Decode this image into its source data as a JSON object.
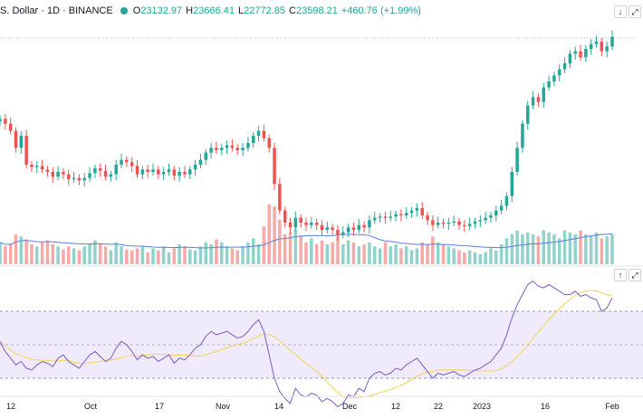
{
  "header": {
    "title": "S. Dollar · 1D · BINANCE",
    "ohlc": [
      {
        "label": "O",
        "value": "23132.97"
      },
      {
        "label": "H",
        "value": "23666.41"
      },
      {
        "label": "L",
        "value": "22772.85"
      },
      {
        "label": "C",
        "value": "23598.21"
      }
    ],
    "change": "+460.76 (+1.99%)"
  },
  "colors": {
    "up": "#26a69a",
    "down": "#ef5350",
    "volume_ma": "#5b7fe0",
    "rsi_line": "#7e57c2",
    "rsi_ma": "#f5d64f",
    "rsi_band": "#efeafc"
  },
  "time_axis": [
    "12",
    "Oct",
    "17",
    "Nov",
    "14",
    "Dec",
    "12",
    "22",
    "2023",
    "16",
    "Feb"
  ],
  "chart_data": [
    {
      "type": "line",
      "title": "",
      "subtitle": "",
      "note": "Candlestick price series (close values); y axis not labeled in the visible area",
      "series": [
        {
          "values": [
            94,
            90,
            84,
            70,
            80,
            56,
            54,
            55,
            52,
            50,
            46,
            50,
            48,
            44,
            45,
            43,
            45,
            49,
            53,
            51,
            46,
            48,
            56,
            60,
            58,
            55,
            48,
            52,
            50,
            52,
            48,
            50,
            52,
            47,
            50,
            48,
            52,
            56,
            60,
            66,
            70,
            68,
            70,
            72,
            70,
            68,
            70,
            74,
            80,
            84,
            78,
            70,
            40,
            18,
            8,
            4,
            12,
            8,
            6,
            8,
            6,
            2,
            4,
            2,
            -2,
            0,
            4,
            2,
            6,
            4,
            10,
            12,
            13,
            12,
            13,
            15,
            14,
            16,
            18,
            20,
            14,
            10,
            6,
            8,
            7,
            8,
            9,
            6,
            5,
            7,
            9,
            10,
            12,
            14,
            18,
            22,
            30,
            50,
            70,
            90,
            105,
            112,
            108,
            120,
            125,
            130,
            135,
            140,
            148,
            150,
            145,
            152,
            156,
            158,
            150,
            154,
            162
          ]
        }
      ]
    },
    {
      "type": "bar",
      "title": "",
      "note": "Volume pane with moving average; no printed values",
      "series": [
        {
          "values": [
            22,
            18,
            20,
            30,
            28,
            25,
            20,
            18,
            22,
            24,
            20,
            18,
            15,
            18,
            16,
            14,
            18,
            20,
            24,
            20,
            18,
            14,
            22,
            18,
            15,
            14,
            16,
            18,
            12,
            16,
            14,
            18,
            12,
            16,
            20,
            18,
            15,
            14,
            18,
            22,
            20,
            25,
            22,
            18,
            16,
            14,
            18,
            22,
            26,
            20,
            38,
            60,
            58,
            45,
            30,
            32,
            35,
            28,
            22,
            26,
            20,
            24,
            20,
            22,
            28,
            20,
            24,
            22,
            18,
            20,
            22,
            18,
            16,
            22,
            18,
            20,
            16,
            18,
            14,
            16,
            22,
            20,
            28,
            22,
            20,
            18,
            16,
            14,
            12,
            14,
            12,
            10,
            12,
            16,
            14,
            20,
            26,
            30,
            34,
            30,
            32,
            30,
            28,
            34,
            32,
            30,
            26,
            34,
            32,
            30,
            34,
            30,
            28,
            32,
            26,
            28,
            30
          ]
        }
      ]
    },
    {
      "type": "line",
      "title": "",
      "note": "RSI pane with RSI-based moving average; y axis not labeled",
      "series": [
        {
          "values": [
            52,
            46,
            42,
            38,
            40,
            36,
            35,
            38,
            40,
            39,
            37,
            42,
            44,
            40,
            38,
            36,
            40,
            44,
            46,
            43,
            40,
            42,
            48,
            52,
            50,
            46,
            41,
            44,
            42,
            43,
            40,
            42,
            44,
            39,
            42,
            41,
            44,
            48,
            50,
            55,
            58,
            56,
            57,
            58,
            56,
            54,
            55,
            58,
            62,
            65,
            58,
            44,
            30,
            22,
            18,
            15,
            24,
            20,
            19,
            21,
            20,
            16,
            18,
            16,
            13,
            15,
            20,
            19,
            24,
            22,
            30,
            33,
            34,
            32,
            33,
            36,
            35,
            38,
            40,
            42,
            38,
            34,
            30,
            33,
            32,
            33,
            34,
            32,
            31,
            33,
            35,
            36,
            38,
            40,
            44,
            48,
            56,
            66,
            74,
            80,
            86,
            88,
            85,
            84,
            86,
            84,
            82,
            80,
            80,
            82,
            79,
            80,
            78,
            77,
            70,
            72,
            78
          ]
        }
      ]
    }
  ]
}
